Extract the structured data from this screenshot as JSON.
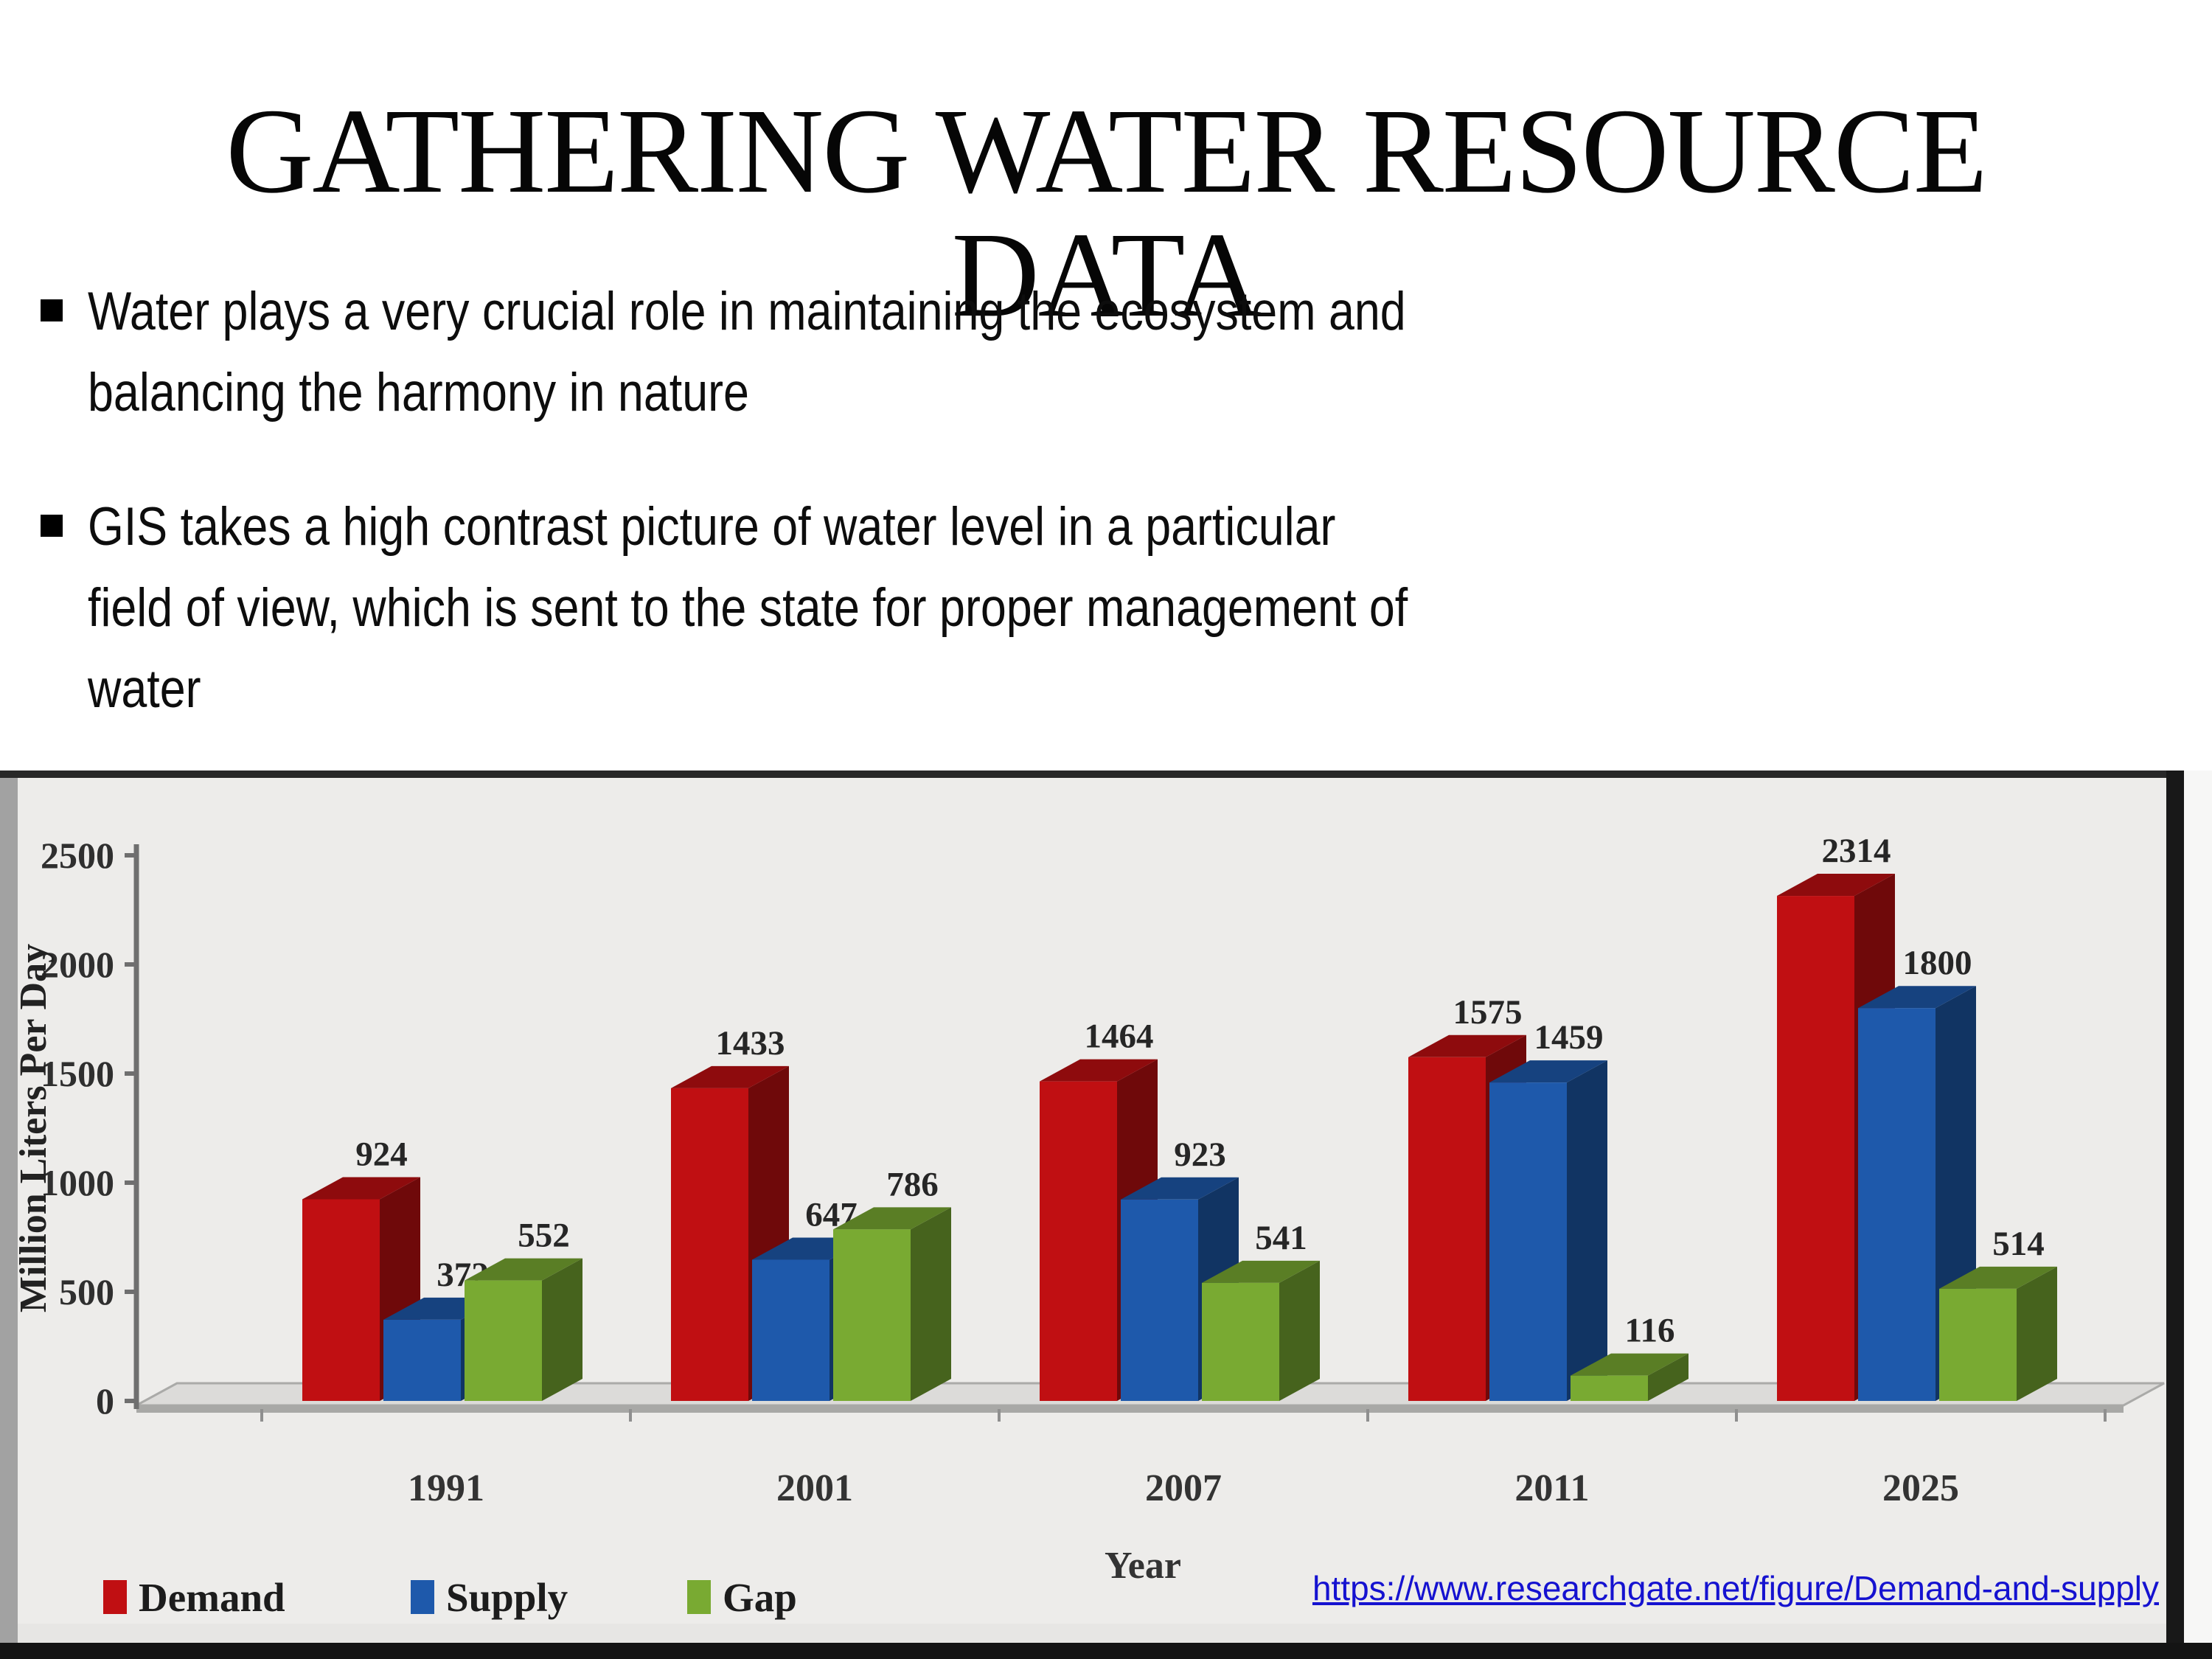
{
  "slide": {
    "title_line1": "GATHERING WATER RESOURCE",
    "title_line2": "DATA",
    "bullets": [
      "Water plays a very crucial role in maintaining the ecosystem and\nbalancing the harmony in nature",
      "GIS takes a high contrast picture of water level in a particular\nfield of view, which is sent to the state for proper management of\nwater"
    ],
    "source_link": "https://www.researchgate.net/figure/Demand-and-supply",
    "link_color": "#1512d0"
  },
  "chart_data": {
    "type": "bar",
    "style": "3d-clustered",
    "categories": [
      "1991",
      "2001",
      "2007",
      "2011",
      "2025"
    ],
    "series": [
      {
        "name": "Demand",
        "color": "#c00f12",
        "values": [
          924,
          1433,
          1464,
          1575,
          2314
        ]
      },
      {
        "name": "Supply",
        "color": "#1e59ab",
        "values": [
          372,
          647,
          923,
          1459,
          1800
        ]
      },
      {
        "name": "Gap",
        "color": "#79aa32",
        "values": [
          552,
          786,
          541,
          116,
          514
        ]
      }
    ],
    "title": "",
    "xlabel": "Year",
    "ylabel": "Million Liters Per Day",
    "ylim": [
      0,
      2500
    ],
    "yticks": [
      0,
      500,
      1000,
      1500,
      2000,
      2500
    ],
    "grid": false,
    "data_labels": true,
    "legend_position": "bottom-left",
    "background": "#edecea"
  }
}
